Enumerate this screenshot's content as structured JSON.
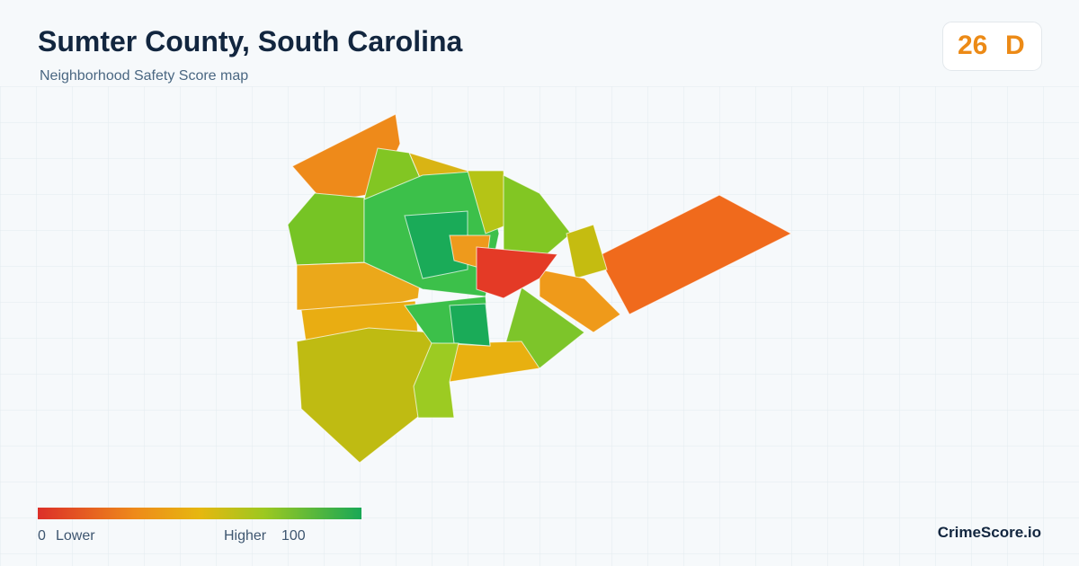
{
  "header": {
    "title": "Sumter County, South Carolina",
    "subtitle": "Neighborhood Safety Score map"
  },
  "score": {
    "value": 26,
    "grade": "D"
  },
  "legend": {
    "min": 0,
    "min_label": "Lower",
    "max_label": "Higher",
    "max": 100
  },
  "footer": {
    "brand": "CrimeScore.io"
  }
}
